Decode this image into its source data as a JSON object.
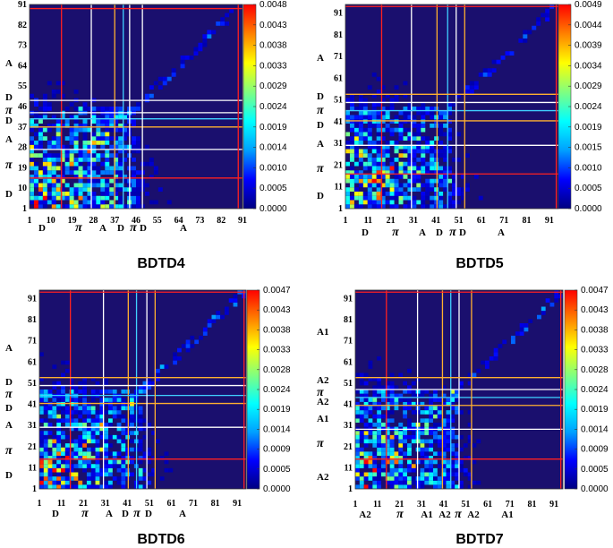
{
  "colormap": [
    "#000080",
    "#0000ff",
    "#00a0ff",
    "#00ffff",
    "#80ff80",
    "#ffff00",
    "#ff8000",
    "#ff0000"
  ],
  "panels": [
    {
      "title": "BDTD4",
      "colorbar": [
        "0.0048",
        "0.0043",
        "0.0038",
        "0.0033",
        "0.0029",
        "0.0024",
        "0.0019",
        "0.0014",
        "0.0010",
        "0.0005",
        "0.0000"
      ],
      "ticks": [
        "1",
        "10",
        "19",
        "28",
        "37",
        "46",
        "55",
        "64",
        "73",
        "82",
        "91"
      ],
      "max": 91,
      "regions_x": [
        "D",
        "π",
        "A",
        "D",
        "π",
        "D",
        "A"
      ],
      "regions_y": [
        "D",
        "π",
        "A",
        "D",
        "π",
        "D",
        "A"
      ]
    },
    {
      "title": "BDTD5",
      "colorbar": [
        "0.0049",
        "0.0044",
        "0.0039",
        "0.0034",
        "0.0029",
        "0.0024",
        "0.0019",
        "0.0015",
        "0.0010",
        "0.0005",
        "0.0000"
      ],
      "ticks": [
        "1",
        "11",
        "21",
        "31",
        "41",
        "51",
        "61",
        "71",
        "81",
        "91"
      ],
      "max": 95,
      "regions_x": [
        "D",
        "π",
        "A",
        "D",
        "π",
        "D",
        "A"
      ],
      "regions_y": [
        "D",
        "π",
        "A",
        "D",
        "π",
        "D",
        "A"
      ]
    },
    {
      "title": "BDTD6",
      "colorbar": [
        "0.0047",
        "0.0043",
        "0.0038",
        "0.0033",
        "0.0028",
        "0.0024",
        "0.0019",
        "0.0014",
        "0.0009",
        "0.0005",
        "0.0000"
      ],
      "ticks": [
        "1",
        "11",
        "21",
        "31",
        "41",
        "51",
        "61",
        "71",
        "81",
        "91"
      ],
      "max": 95,
      "regions_x": [
        "D",
        "π",
        "A",
        "D",
        "π",
        "D",
        "A"
      ],
      "regions_y": [
        "D",
        "π",
        "A",
        "D",
        "π",
        "D",
        "A"
      ]
    },
    {
      "title": "BDTD7",
      "colorbar": [
        "0.0047",
        "0.0043",
        "0.0038",
        "0.0033",
        "0.0028",
        "0.0024",
        "0.0019",
        "0.0014",
        "0.0009",
        "0.0005",
        "0.0000"
      ],
      "ticks": [
        "1",
        "11",
        "21",
        "31",
        "41",
        "51",
        "61",
        "71",
        "81",
        "91"
      ],
      "max": 95,
      "regions_x": [
        "A2",
        "π",
        "A1",
        "A2",
        "π",
        "A2",
        "A1"
      ],
      "regions_y": [
        "A2",
        "π",
        "A1",
        "A2",
        "π",
        "A2",
        "A1"
      ]
    }
  ]
}
